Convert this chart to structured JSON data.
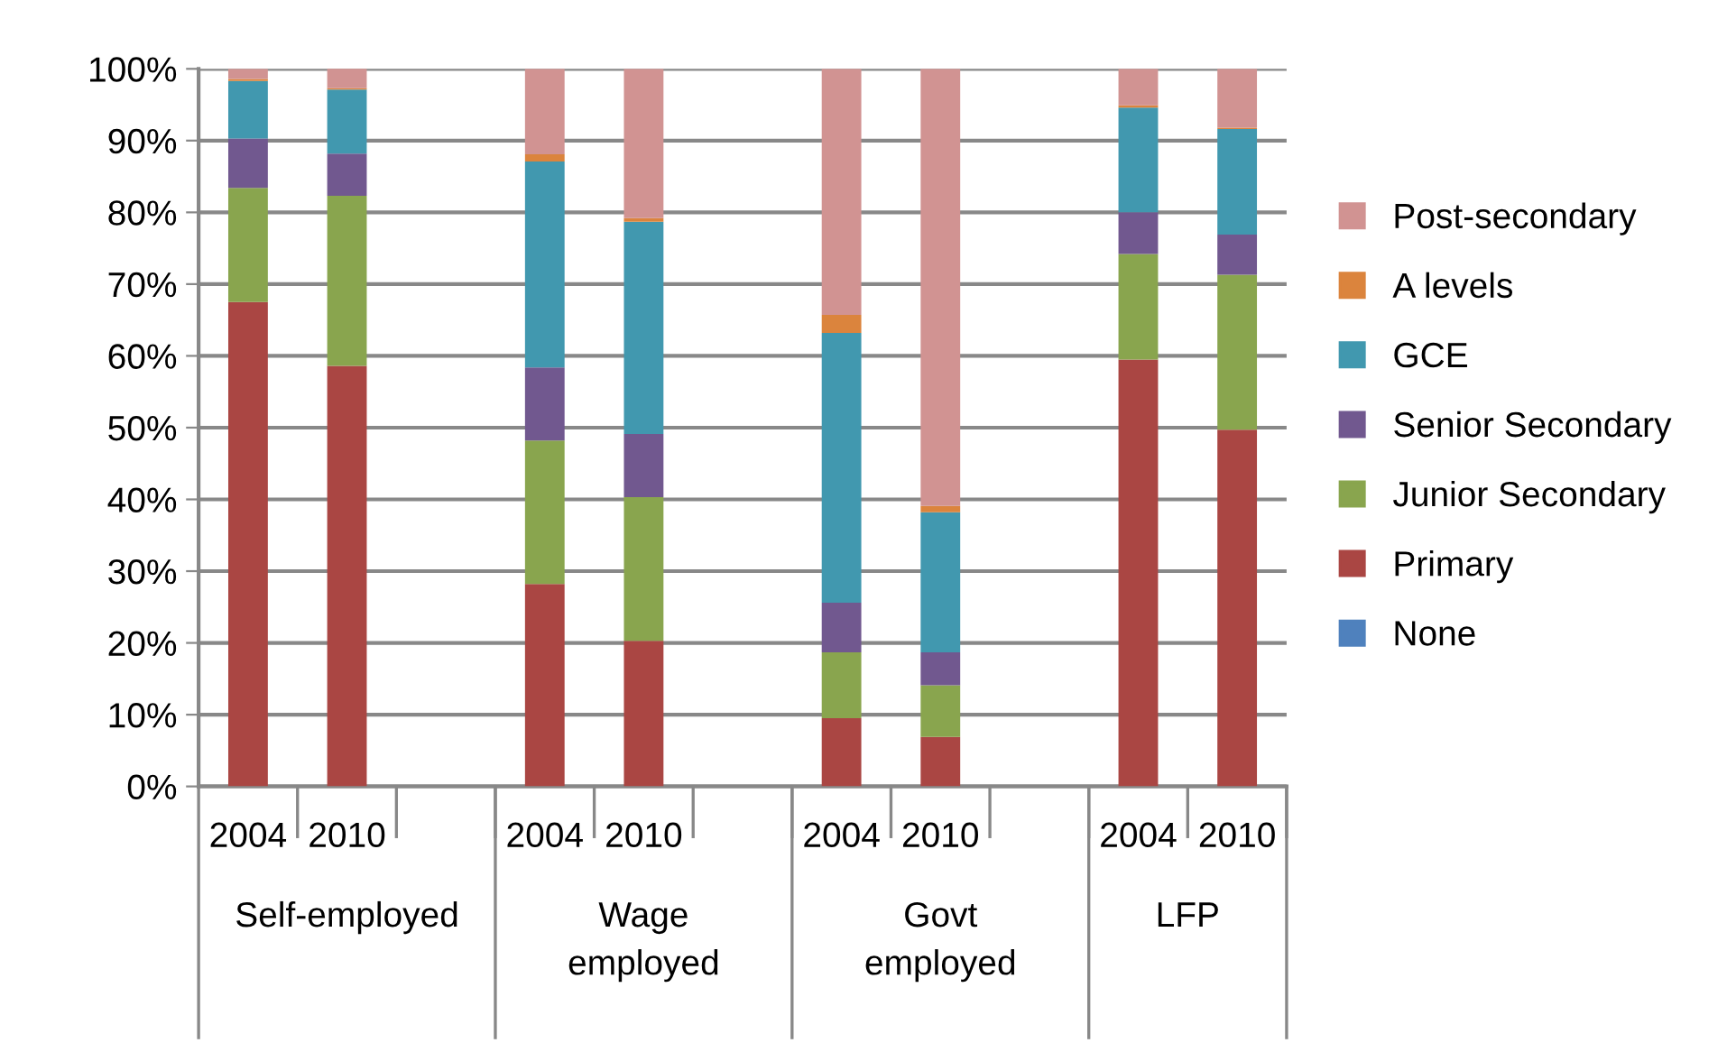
{
  "chart_data": {
    "type": "bar",
    "stacked": true,
    "categories": [
      "2004",
      "2010",
      null,
      "2004",
      "2010",
      null,
      "2004",
      "2010",
      null,
      "2004",
      "2010"
    ],
    "annotations": [
      "Self-employed",
      "Wage\nemployed",
      "Govt\nemployed",
      "LFP"
    ],
    "series": [
      {
        "name": "None",
        "color": "#4f81bd",
        "values": [
          0,
          0,
          null,
          0,
          0,
          null,
          0,
          0,
          null,
          0,
          0
        ]
      },
      {
        "name": "Primary",
        "color": "#aa4643",
        "values": [
          67.5,
          58.6,
          null,
          28.2,
          20.3,
          null,
          9.5,
          6.9,
          null,
          59.5,
          49.7
        ]
      },
      {
        "name": "Junior Secondary",
        "color": "#89a54e",
        "values": [
          15.9,
          23.7,
          null,
          20.0,
          20.0,
          null,
          9.2,
          7.2,
          null,
          14.7,
          21.6
        ]
      },
      {
        "name": "Senior Secondary",
        "color": "#71588f",
        "values": [
          6.9,
          5.9,
          null,
          10.2,
          8.8,
          null,
          6.9,
          4.6,
          null,
          5.8,
          5.6
        ]
      },
      {
        "name": "GCE",
        "color": "#4198af",
        "values": [
          8.0,
          8.9,
          null,
          28.7,
          29.6,
          null,
          37.6,
          19.5,
          null,
          14.6,
          14.7
        ]
      },
      {
        "name": "A levels",
        "color": "#db843d",
        "values": [
          0.3,
          0.2,
          null,
          1.0,
          0.5,
          null,
          2.5,
          0.9,
          null,
          0.3,
          0.2
        ]
      },
      {
        "name": "Post-secondary",
        "color": "#d19392",
        "values": [
          1.4,
          2.8,
          null,
          11.9,
          20.8,
          null,
          34.3,
          60.9,
          null,
          5.1,
          8.2
        ]
      }
    ],
    "ylim": [
      0,
      100
    ],
    "yticks": [
      {
        "value": 0,
        "label": "0%"
      },
      {
        "value": 10,
        "label": "10%"
      },
      {
        "value": 20,
        "label": "20%"
      },
      {
        "value": 30,
        "label": "30%"
      },
      {
        "value": 40,
        "label": "40%"
      },
      {
        "value": 50,
        "label": "50%"
      },
      {
        "value": 60,
        "label": "60%"
      },
      {
        "value": 70,
        "label": "70%"
      },
      {
        "value": 80,
        "label": "80%"
      },
      {
        "value": 90,
        "label": "90%"
      },
      {
        "value": 100,
        "label": "100%"
      }
    ],
    "grid": "y",
    "legend": "right"
  }
}
